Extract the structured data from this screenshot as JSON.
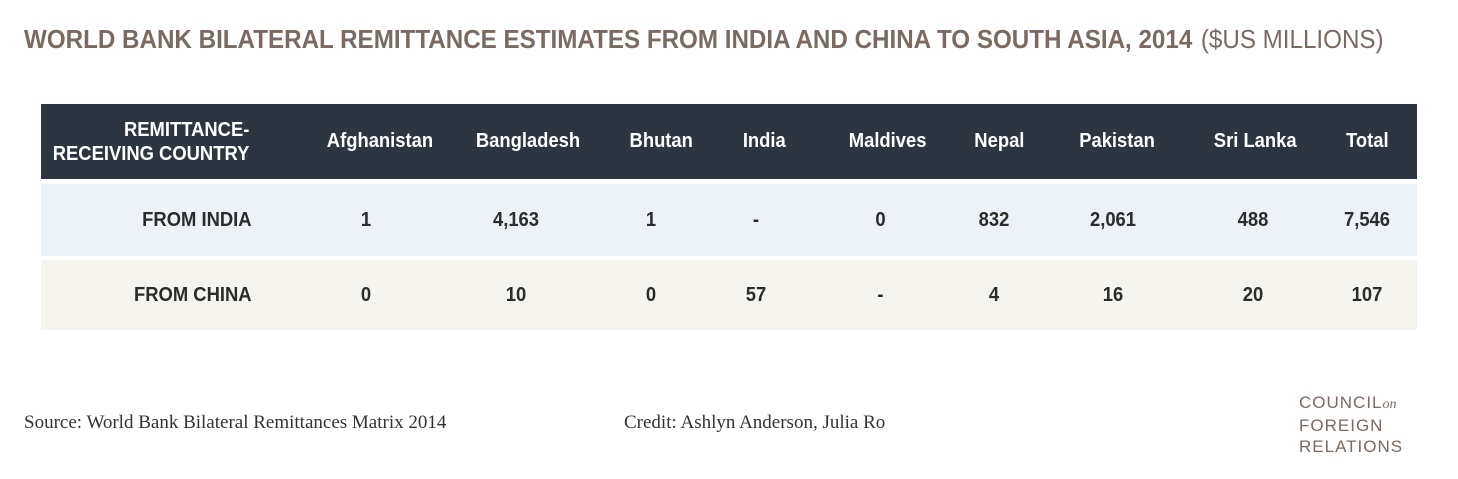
{
  "title": {
    "main": "WORLD BANK BILATERAL REMITTANCE ESTIMATES FROM INDIA AND CHINA TO SOUTH ASIA, 2014",
    "units": "($US MILLIONS)"
  },
  "table": {
    "header_label_line1": "REMITTANCE-",
    "header_label_line2": "RECEIVING COUNTRY",
    "columns": [
      "Afghanistan",
      "Bangladesh",
      "Bhutan",
      "India",
      "Maldives",
      "Nepal",
      "Pakistan",
      "Sri Lanka",
      "Total"
    ],
    "rows": [
      {
        "label": "FROM INDIA",
        "values": [
          "1",
          "4,163",
          "1",
          "-",
          "0",
          "832",
          "2,061",
          "488",
          "7,546"
        ]
      },
      {
        "label": "FROM CHINA",
        "values": [
          "0",
          "10",
          "0",
          "57",
          "-",
          "4",
          "16",
          "20",
          "107"
        ]
      }
    ]
  },
  "chart_data": {
    "type": "table",
    "title": "WORLD BANK BILATERAL REMITTANCE ESTIMATES FROM INDIA AND CHINA TO SOUTH ASIA, 2014 ($US MILLIONS)",
    "columns": [
      "Afghanistan",
      "Bangladesh",
      "Bhutan",
      "India",
      "Maldives",
      "Nepal",
      "Pakistan",
      "Sri Lanka",
      "Total"
    ],
    "series": [
      {
        "name": "FROM INDIA",
        "values": [
          1,
          4163,
          1,
          null,
          0,
          832,
          2061,
          488,
          7546
        ]
      },
      {
        "name": "FROM CHINA",
        "values": [
          0,
          10,
          0,
          57,
          null,
          4,
          16,
          20,
          107
        ]
      }
    ]
  },
  "footer": {
    "source": "Source: World Bank Bilateral Remittances Matrix 2014",
    "credit": "Credit: Ashlyn Anderson, Julia Ro"
  },
  "logo": {
    "line1": "COUNCIL",
    "line1_suffix": "on",
    "line2": "FOREIGN",
    "line3": "RELATIONS"
  },
  "colors": {
    "title": "#7a6a62",
    "header_bg": "#2d3640",
    "row_india_bg": "#edf2f8",
    "row_china_bg": "#f5f4ee"
  }
}
